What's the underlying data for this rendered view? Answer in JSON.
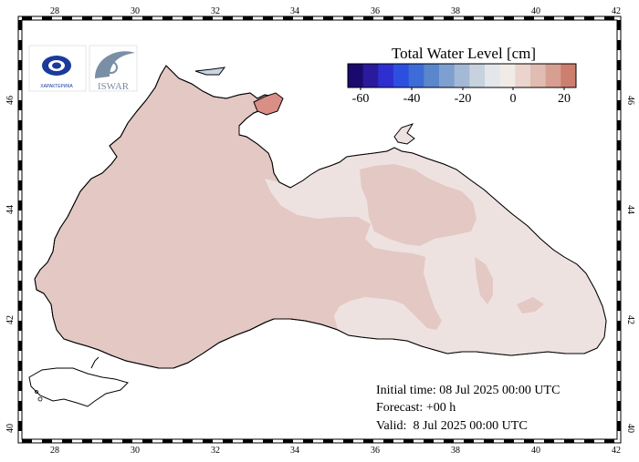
{
  "map": {
    "title": "Total Water Level [cm]",
    "lon_ticks": [
      "28",
      "30",
      "32",
      "34",
      "36",
      "38",
      "40",
      "42"
    ],
    "lat_ticks": [
      "40",
      "42",
      "44",
      "46"
    ],
    "colorbar": {
      "ticks": [
        "-60",
        "-40",
        "-20",
        "0",
        "20"
      ],
      "colors": [
        "#1a0a6e",
        "#2a1b9c",
        "#2f2fd0",
        "#2d4fe0",
        "#3d6bd8",
        "#5a86cc",
        "#7ea0d0",
        "#a4b9d6",
        "#c8d2de",
        "#e3e6ea",
        "#f1ebe8",
        "#ead4cd",
        "#e0bcb2",
        "#d79f92",
        "#cc7f6e"
      ]
    },
    "colors": {
      "sea_positive": "#e3c8c4",
      "sea_low": "#eee2e1",
      "hotspot": "#d98e86",
      "azov": "#c9d7e4"
    }
  },
  "info": {
    "initial": "Initial time: 08 Jul 2025 00:00 UTC",
    "forecast": "Forecast: +00 h",
    "valid": "Valid:  8 Jul 2025 00:00 UTC"
  },
  "logos": {
    "left_text": "ХАРАКТЕРИКА",
    "right_text": "ISWAR"
  }
}
